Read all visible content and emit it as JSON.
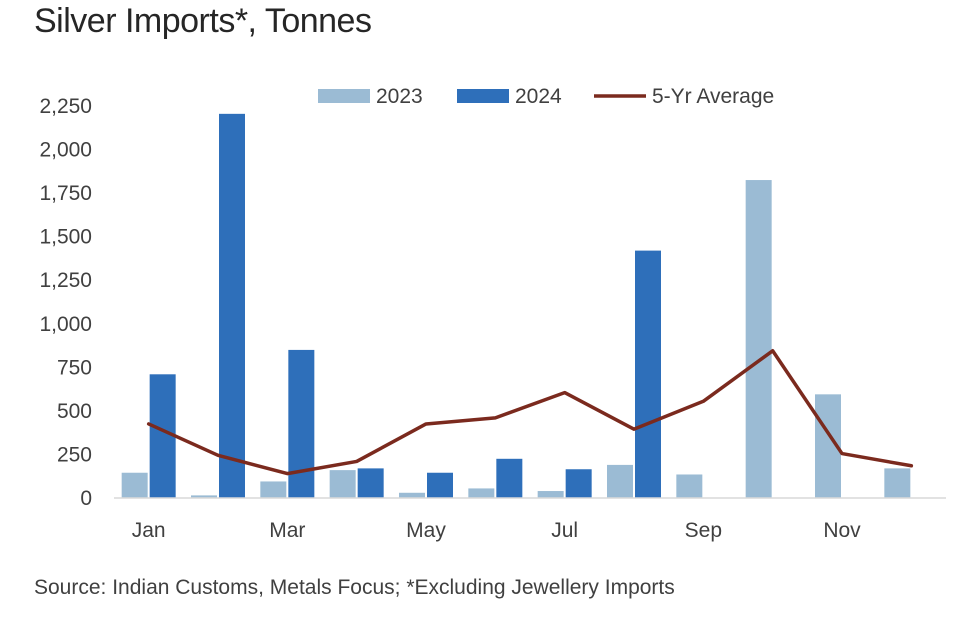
{
  "chart_data": {
    "type": "bar",
    "title": "Silver Imports*, Tonnes",
    "source": "Source: Indian Customs, Metals Focus; *Excluding Jewellery Imports",
    "categories": [
      "Jan",
      "Feb",
      "Mar",
      "Apr",
      "May",
      "Jun",
      "Jul",
      "Aug",
      "Sep",
      "Oct",
      "Nov",
      "Dec"
    ],
    "x_tick_labels": [
      "Jan",
      "",
      "Mar",
      "",
      "May",
      "",
      "Jul",
      "",
      "Sep",
      "",
      "Nov",
      ""
    ],
    "series": [
      {
        "name": "2023",
        "kind": "bar",
        "color": "#9bbbd4",
        "values": [
          145,
          15,
          95,
          160,
          30,
          55,
          40,
          190,
          135,
          1825,
          595,
          170
        ]
      },
      {
        "name": "2024",
        "kind": "bar",
        "color": "#2e6fba",
        "values": [
          710,
          2205,
          850,
          170,
          145,
          225,
          165,
          1420,
          null,
          null,
          null,
          null
        ]
      },
      {
        "name": "5-Yr Average",
        "kind": "line",
        "color": "#7b2a1e",
        "values": [
          425,
          245,
          140,
          210,
          425,
          460,
          605,
          395,
          555,
          845,
          255,
          185
        ]
      }
    ],
    "ylim": [
      0,
      2250
    ],
    "yticks": [
      0,
      250,
      500,
      750,
      1000,
      1250,
      1500,
      1750,
      2000,
      2250
    ],
    "ytick_labels": [
      "0",
      "250",
      "500",
      "750",
      "1,000",
      "1,250",
      "1,500",
      "1,750",
      "2,000",
      "2,250"
    ],
    "xlabel": "",
    "ylabel": "",
    "grid": false,
    "legend": "top"
  }
}
